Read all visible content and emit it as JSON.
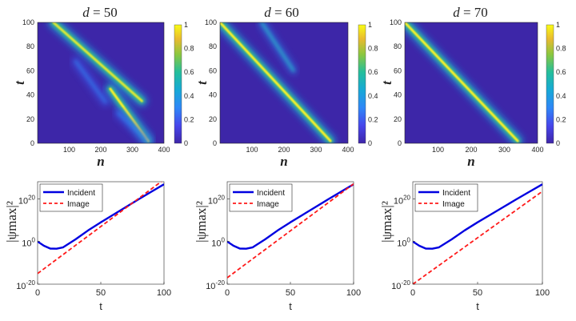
{
  "chart_data": [
    {
      "type": "heatmap",
      "title_var": "d",
      "title_value": "50",
      "xlabel": "n",
      "ylabel": "t",
      "xlim": [
        0,
        400
      ],
      "ylim": [
        0,
        100
      ],
      "xticks": [
        "100",
        "200",
        "300",
        "400"
      ],
      "yticks": [
        "0",
        "20",
        "40",
        "60",
        "80",
        "100"
      ],
      "colorbar_ticks": [
        "0",
        "0.2",
        "0.4",
        "0.6",
        "0.8",
        "1"
      ],
      "tracks": [
        {
          "name": "incident",
          "start": [
            50,
            100
          ],
          "end": [
            330,
            35
          ],
          "strength": 0.85
        },
        {
          "name": "transmitted",
          "start": [
            230,
            45
          ],
          "end": [
            350,
            2
          ],
          "strength": 1.0
        },
        {
          "name": "image",
          "start": [
            120,
            68
          ],
          "end": [
            215,
            34
          ],
          "strength": 0.3
        },
        {
          "name": "reflected-weak",
          "start": [
            255,
            25
          ],
          "end": [
            350,
            2
          ],
          "strength": 0.35
        }
      ]
    },
    {
      "type": "heatmap",
      "title_var": "d",
      "title_value": "60",
      "xlabel": "n",
      "ylabel": "t",
      "xlim": [
        0,
        400
      ],
      "ylim": [
        0,
        100
      ],
      "xticks": [
        "100",
        "200",
        "300",
        "400"
      ],
      "yticks": [
        "0",
        "20",
        "40",
        "60",
        "80",
        "100"
      ],
      "colorbar_ticks": [
        "0",
        "0.2",
        "0.4",
        "0.6",
        "0.8",
        "1"
      ],
      "tracks": [
        {
          "name": "incident",
          "start": [
            0,
            100
          ],
          "end": [
            345,
            2
          ],
          "strength": 1.0
        },
        {
          "name": "image",
          "start": [
            130,
            100
          ],
          "end": [
            230,
            60
          ],
          "strength": 0.5
        }
      ]
    },
    {
      "type": "heatmap",
      "title_var": "d",
      "title_value": "70",
      "xlabel": "n",
      "ylabel": "t",
      "xlim": [
        0,
        400
      ],
      "ylim": [
        0,
        100
      ],
      "xticks": [
        "100",
        "200",
        "300",
        "400"
      ],
      "yticks": [
        "0",
        "20",
        "40",
        "60",
        "80",
        "100"
      ],
      "colorbar_ticks": [
        "0",
        "0.2",
        "0.4",
        "0.6",
        "0.8",
        "1"
      ],
      "tracks": [
        {
          "name": "incident",
          "start": [
            0,
            100
          ],
          "end": [
            340,
            2
          ],
          "strength": 1.0
        }
      ]
    },
    {
      "type": "line",
      "xlabel": "t",
      "ylabel": "|ψmax|²",
      "xlim": [
        0,
        100
      ],
      "ylim_log10": [
        -20,
        28
      ],
      "xticks": [
        "0",
        "50",
        "100"
      ],
      "yticks": [
        {
          "base": "10",
          "exp": "20",
          "v": 20
        },
        {
          "base": "10",
          "exp": "0",
          "v": 0
        },
        {
          "base": "10",
          "exp": "-20",
          "v": -20
        }
      ],
      "series": [
        {
          "name": "Incident",
          "color": "#0000e0",
          "style": "solid",
          "x": [
            0,
            5,
            10,
            15,
            20,
            30,
            40,
            50,
            60,
            70,
            80,
            90,
            100
          ],
          "log10_y": [
            0,
            -2.0,
            -3.3,
            -3.4,
            -2.8,
            1.0,
            5.2,
            9.0,
            12.6,
            16.2,
            19.8,
            23.3,
            26.8
          ]
        },
        {
          "name": "Image",
          "color": "#ff1a1a",
          "style": "dashed",
          "x": [
            0,
            100
          ],
          "log10_y": [
            -15,
            29
          ]
        }
      ]
    },
    {
      "type": "line",
      "xlabel": "t",
      "ylabel": "|ψmax|²",
      "xlim": [
        0,
        100
      ],
      "ylim_log10": [
        -20,
        28
      ],
      "xticks": [
        "0",
        "50",
        "100"
      ],
      "yticks": [
        {
          "base": "10",
          "exp": "20",
          "v": 20
        },
        {
          "base": "10",
          "exp": "0",
          "v": 0
        },
        {
          "base": "10",
          "exp": "-20",
          "v": -20
        }
      ],
      "series": [
        {
          "name": "Incident",
          "color": "#0000e0",
          "style": "solid",
          "x": [
            0,
            5,
            10,
            15,
            20,
            30,
            40,
            50,
            60,
            70,
            80,
            90,
            100
          ],
          "log10_y": [
            0,
            -2.0,
            -3.3,
            -3.4,
            -2.8,
            1.0,
            5.2,
            9.0,
            12.6,
            16.2,
            19.8,
            23.3,
            26.8
          ]
        },
        {
          "name": "Image",
          "color": "#ff1a1a",
          "style": "dashed",
          "x": [
            0,
            100
          ],
          "log10_y": [
            -17,
            27
          ]
        }
      ]
    },
    {
      "type": "line",
      "xlabel": "t",
      "ylabel": "|ψmax|²",
      "xlim": [
        0,
        100
      ],
      "ylim_log10": [
        -20,
        28
      ],
      "xticks": [
        "0",
        "50",
        "100"
      ],
      "yticks": [
        {
          "base": "10",
          "exp": "20",
          "v": 20
        },
        {
          "base": "10",
          "exp": "0",
          "v": 0
        },
        {
          "base": "10",
          "exp": "-20",
          "v": -20
        }
      ],
      "series": [
        {
          "name": "Incident",
          "color": "#0000e0",
          "style": "solid",
          "x": [
            0,
            5,
            10,
            15,
            20,
            30,
            40,
            50,
            60,
            70,
            80,
            90,
            100
          ],
          "log10_y": [
            0,
            -2.0,
            -3.3,
            -3.4,
            -2.8,
            1.0,
            5.2,
            9.0,
            12.6,
            16.2,
            19.8,
            23.3,
            26.8
          ]
        },
        {
          "name": "Image",
          "color": "#ff1a1a",
          "style": "dashed",
          "x": [
            0,
            100
          ],
          "log10_y": [
            -20,
            23.5
          ]
        }
      ]
    }
  ],
  "colors": {
    "heatmap_background": "#3d26a8",
    "incident_line": "#0000e0",
    "image_line": "#ff1a1a"
  }
}
